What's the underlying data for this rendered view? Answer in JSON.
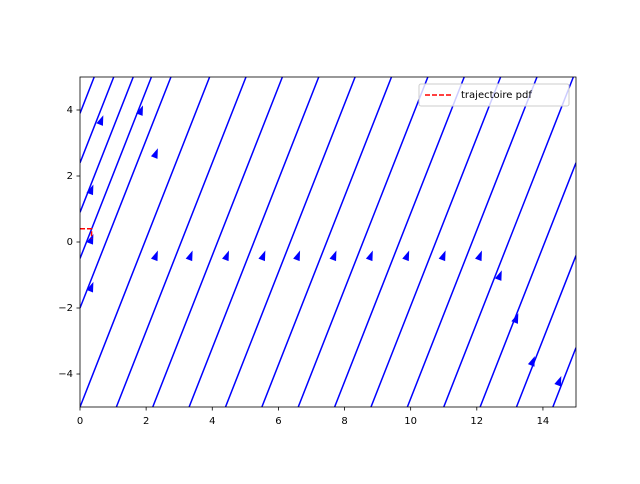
{
  "chart_data": {
    "type": "streamplot",
    "xlim": [
      0,
      15
    ],
    "ylim": [
      -5,
      5
    ],
    "xticks": [
      0,
      2,
      4,
      6,
      8,
      10,
      12,
      14
    ],
    "yticks": [
      {
        "value": -4,
        "label": "−4"
      },
      {
        "value": -2,
        "label": "−2"
      },
      0,
      2,
      4
    ],
    "stream_color": "blue",
    "streamlines": [
      {
        "x": [
          0,
          3.92
        ],
        "y": [
          -5,
          5
        ]
      },
      {
        "x": [
          1.1,
          5.02
        ],
        "y": [
          -5,
          5
        ]
      },
      {
        "x": [
          2.2,
          6.12
        ],
        "y": [
          -5,
          5
        ]
      },
      {
        "x": [
          3.3,
          7.22
        ],
        "y": [
          -5,
          5
        ]
      },
      {
        "x": [
          4.4,
          8.32
        ],
        "y": [
          -5,
          5
        ]
      },
      {
        "x": [
          5.5,
          9.42
        ],
        "y": [
          -5,
          5
        ]
      },
      {
        "x": [
          6.6,
          10.52
        ],
        "y": [
          -5,
          5
        ]
      },
      {
        "x": [
          7.7,
          11.62
        ],
        "y": [
          -5,
          5
        ]
      },
      {
        "x": [
          8.8,
          12.72
        ],
        "y": [
          -5,
          5
        ]
      },
      {
        "x": [
          9.9,
          13.82
        ],
        "y": [
          -5,
          5
        ]
      },
      {
        "x": [
          11,
          14.92
        ],
        "y": [
          -5,
          5
        ]
      },
      {
        "x": [
          12.1,
          15
        ],
        "y": [
          -5,
          2.4
        ]
      },
      {
        "x": [
          13.2,
          15
        ],
        "y": [
          -5,
          -0.41
        ]
      },
      {
        "x": [
          14.3,
          15
        ],
        "y": [
          -5,
          -3.2
        ]
      },
      {
        "x": [
          0,
          2.75
        ],
        "y": [
          -2,
          5
        ]
      },
      {
        "x": [
          0,
          2.16
        ],
        "y": [
          -0.5,
          5
        ]
      },
      {
        "x": [
          0,
          1.61
        ],
        "y": [
          0.9,
          5
        ]
      },
      {
        "x": [
          0,
          1.02
        ],
        "y": [
          2.4,
          5
        ]
      },
      {
        "x": [
          0,
          0.43
        ],
        "y": [
          3.9,
          5
        ]
      }
    ],
    "arrows": {
      "x": [
        0.35,
        0.35,
        0.65,
        1.85,
        2.3,
        2.3,
        3.35,
        4.45,
        5.55,
        6.6,
        7.7,
        8.8,
        9.9,
        11,
        12.1,
        12.7,
        13.2,
        13.7,
        14.5,
        0.35
      ],
      "y": [
        -1.35,
        1.6,
        3.7,
        4,
        2.7,
        -0.4,
        -0.4,
        -0.4,
        -0.4,
        -0.4,
        -0.4,
        -0.4,
        -0.4,
        -0.4,
        -0.4,
        -1,
        -2.3,
        -3.6,
        -4.2,
        0.1
      ]
    },
    "trajectory": {
      "name": "trajectoire pdf",
      "color": "red",
      "x": [
        0,
        0.35,
        0.35
      ],
      "y": [
        0.4,
        0.4,
        0.1
      ]
    },
    "legend": "upper right"
  }
}
